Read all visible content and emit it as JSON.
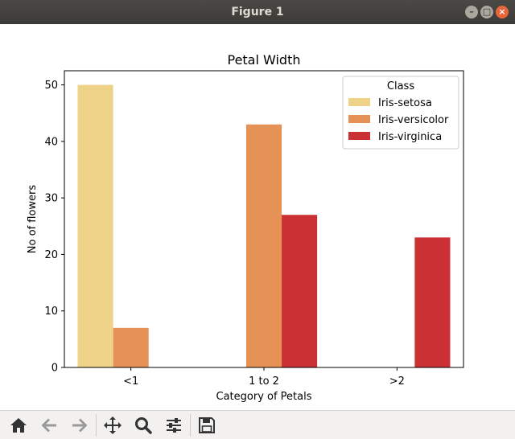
{
  "window": {
    "title": "Figure 1"
  },
  "toolbar": {
    "buttons": [
      {
        "name": "home-button",
        "icon": "home-icon"
      },
      {
        "name": "back-button",
        "icon": "arrow-left-icon"
      },
      {
        "name": "forward-button",
        "icon": "arrow-right-icon"
      },
      {
        "name": "pan-button",
        "icon": "move-icon"
      },
      {
        "name": "zoom-button",
        "icon": "magnifier-icon"
      },
      {
        "name": "subplots-button",
        "icon": "sliders-icon"
      },
      {
        "name": "save-button",
        "icon": "floppy-icon"
      }
    ]
  },
  "chart_data": {
    "type": "bar",
    "title": "Petal Width",
    "xlabel": "Category of Petals",
    "ylabel": "No of flowers",
    "categories": [
      "<1",
      "1 to 2",
      ">2"
    ],
    "ylim": [
      0,
      52.5
    ],
    "yticks": [
      0,
      10,
      20,
      30,
      40,
      50
    ],
    "legend_title": "Class",
    "legend_position": "top-right",
    "series": [
      {
        "name": "Iris-setosa",
        "color": "#edd287",
        "values": [
          50,
          0,
          0
        ]
      },
      {
        "name": "Iris-versicolor",
        "color": "#e69256",
        "values": [
          7,
          43,
          0
        ]
      },
      {
        "name": "Iris-virginica",
        "color": "#cb3034",
        "values": [
          0,
          27,
          23
        ]
      }
    ]
  }
}
